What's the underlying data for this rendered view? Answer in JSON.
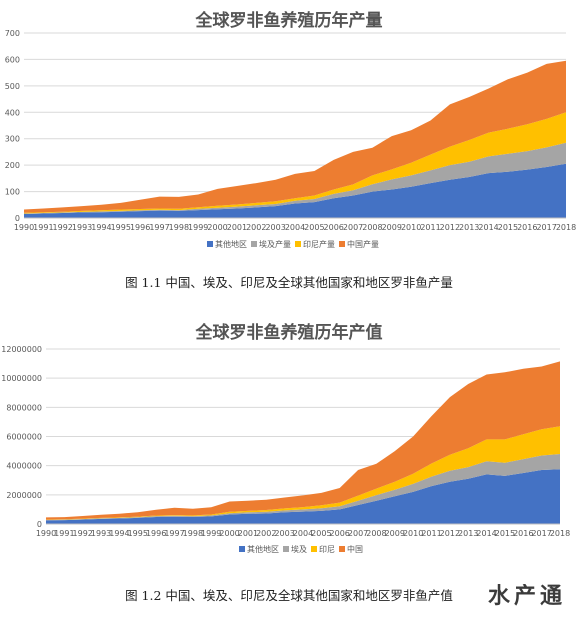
{
  "colors": {
    "other": "#4472C4",
    "egypt": "#A5A5A5",
    "indonesia": "#FFC000",
    "china": "#ED7D31"
  },
  "caption1": "图 1.1 中国、埃及、印尼及全球其他国家和地区罗非鱼产量",
  "caption2": "图 1.2 中国、埃及、印尼及全球其他国家和地区罗非鱼产值",
  "watermark": "水产通",
  "chart_data": [
    {
      "type": "area",
      "stacked": true,
      "title": "全球罗非鱼养殖历年产量",
      "xlabel": "",
      "ylabel": "",
      "ylim": [
        0,
        700
      ],
      "yticks": [
        0,
        100,
        200,
        300,
        400,
        500,
        600,
        700
      ],
      "grid": true,
      "legend_position": "bottom",
      "categories": [
        "1990",
        "1991",
        "1992",
        "1993",
        "1994",
        "1995",
        "1996",
        "1997",
        "1998",
        "1999",
        "2000",
        "2001",
        "2002",
        "2003",
        "2004",
        "2005",
        "2006",
        "2007",
        "2008",
        "2009",
        "2010",
        "2011",
        "2012",
        "2013",
        "2014",
        "2015",
        "2016",
        "2017",
        "2018"
      ],
      "series": [
        {
          "name": "其他地区",
          "color": "#4472C4",
          "values": [
            15,
            17,
            19,
            21,
            22,
            24,
            26,
            28,
            27,
            30,
            33,
            36,
            40,
            45,
            55,
            60,
            75,
            85,
            100,
            108,
            118,
            132,
            145,
            155,
            170,
            175,
            183,
            193,
            205
          ]
        },
        {
          "name": "埃及产量",
          "color": "#A5A5A5",
          "values": [
            2,
            2,
            2,
            2,
            3,
            3,
            3,
            3,
            3,
            5,
            6,
            7,
            8,
            8,
            10,
            12,
            16,
            20,
            28,
            38,
            43,
            48,
            55,
            58,
            63,
            68,
            70,
            74,
            80
          ]
        },
        {
          "name": "印尼产量",
          "color": "#FFC000",
          "values": [
            3,
            3,
            3,
            4,
            4,
            5,
            5,
            5,
            5,
            6,
            7,
            8,
            9,
            10,
            10,
            13,
            17,
            22,
            33,
            38,
            48,
            60,
            70,
            82,
            90,
            95,
            102,
            108,
            115
          ]
        },
        {
          "name": "中国产量",
          "color": "#ED7D31",
          "values": [
            12,
            14,
            16,
            18,
            21,
            25,
            35,
            45,
            45,
            48,
            64,
            70,
            75,
            82,
            92,
            93,
            112,
            123,
            105,
            126,
            123,
            129,
            160,
            163,
            167,
            187,
            195,
            208,
            195
          ]
        }
      ]
    },
    {
      "type": "area",
      "stacked": true,
      "title": "全球罗非鱼养殖历年产值",
      "xlabel": "",
      "ylabel": "",
      "ylim": [
        0,
        12000000
      ],
      "yticks": [
        0,
        2000000,
        4000000,
        6000000,
        8000000,
        10000000,
        12000000
      ],
      "grid": true,
      "legend_position": "bottom",
      "categories": [
        "1990",
        "1991",
        "1992",
        "1993",
        "1994",
        "1995",
        "1996",
        "1997",
        "1998",
        "1999",
        "2000",
        "2001",
        "2002",
        "2003",
        "2004",
        "2005",
        "2006",
        "2007",
        "2008",
        "2009",
        "2010",
        "2011",
        "2012",
        "2013",
        "2014",
        "2015",
        "2016",
        "2017",
        "2018"
      ],
      "series": [
        {
          "name": "其他地区",
          "color": "#4472C4",
          "values": [
            250000,
            270000,
            300000,
            350000,
            380000,
            420000,
            480000,
            500000,
            480000,
            520000,
            650000,
            700000,
            720000,
            800000,
            850000,
            900000,
            1000000,
            1300000,
            1600000,
            1900000,
            2200000,
            2600000,
            2900000,
            3100000,
            3400000,
            3300000,
            3500000,
            3700000,
            3750000
          ]
        },
        {
          "name": "埃及",
          "color": "#A5A5A5",
          "values": [
            30000,
            30000,
            40000,
            40000,
            40000,
            50000,
            60000,
            60000,
            60000,
            70000,
            90000,
            100000,
            120000,
            130000,
            150000,
            180000,
            220000,
            300000,
            380000,
            450000,
            550000,
            650000,
            750000,
            800000,
            900000,
            900000,
            950000,
            1000000,
            1050000
          ]
        },
        {
          "name": "印尼",
          "color": "#FFC000",
          "values": [
            20000,
            20000,
            30000,
            30000,
            30000,
            40000,
            40000,
            50000,
            50000,
            60000,
            100000,
            100000,
            120000,
            140000,
            160000,
            200000,
            250000,
            350000,
            450000,
            550000,
            700000,
            900000,
            1100000,
            1300000,
            1500000,
            1600000,
            1700000,
            1800000,
            1900000
          ]
        },
        {
          "name": "中国",
          "color": "#ED7D31",
          "values": [
            150000,
            150000,
            180000,
            220000,
            250000,
            300000,
            400000,
            500000,
            450000,
            500000,
            700000,
            700000,
            700000,
            750000,
            800000,
            850000,
            1000000,
            1750000,
            1700000,
            2100000,
            2550000,
            3250000,
            3950000,
            4400000,
            4450000,
            4600000,
            4500000,
            4300000,
            4450000
          ]
        }
      ]
    }
  ]
}
